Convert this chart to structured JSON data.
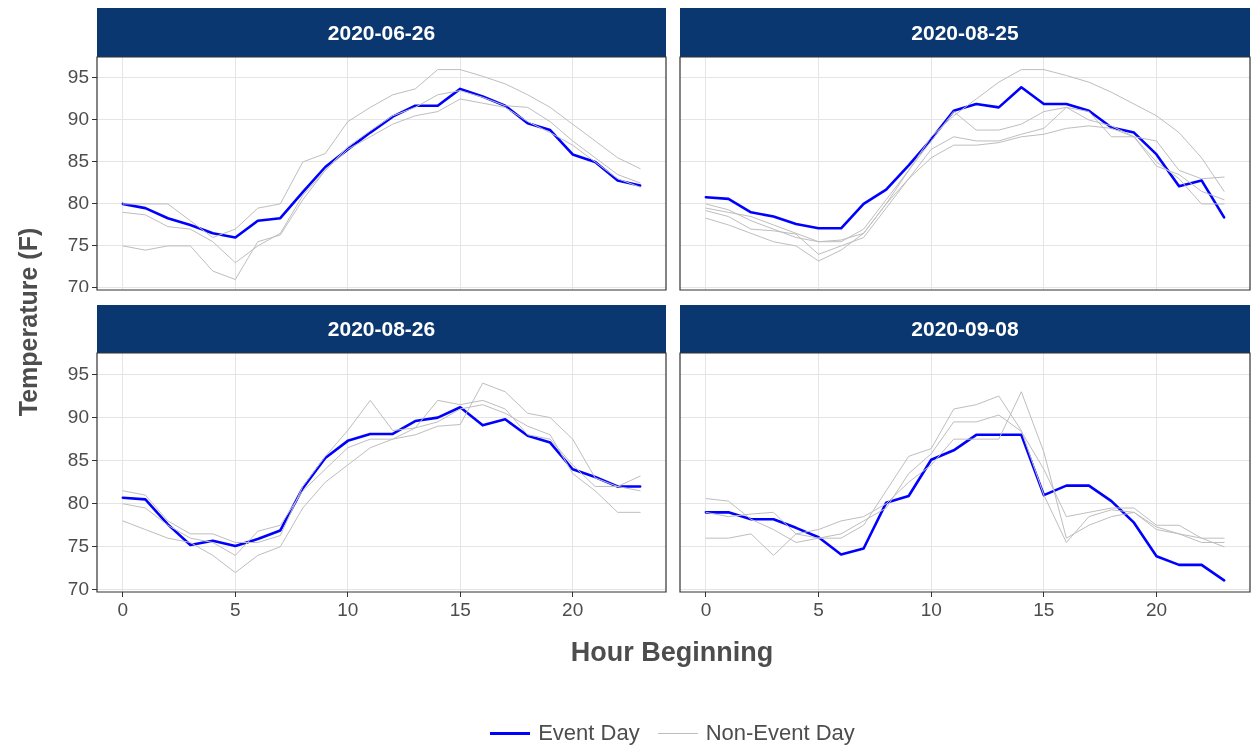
{
  "chart_data": [
    {
      "type": "line",
      "title": "2020-06-26",
      "ylabel": "Temperature (F)",
      "legend": "bottom",
      "grid": true,
      "tick_labels": "y",
      "x": [
        0,
        1,
        2,
        3,
        4,
        5,
        6,
        7,
        8,
        9,
        10,
        11,
        12,
        13,
        14,
        15,
        16,
        17,
        18,
        19,
        20,
        21,
        22,
        23
      ],
      "xlim": [
        -1.15,
        24.15
      ],
      "xticks": [
        0,
        5,
        10,
        15,
        20
      ],
      "ylim": [
        69.75,
        97.5
      ],
      "yticks": [
        70,
        75,
        80,
        85,
        90,
        95
      ],
      "series": [
        {
          "name": "Non-Event Day",
          "color": "#bebebe",
          "values": [
            80,
            80,
            80,
            78,
            76,
            77,
            79.5,
            80,
            85,
            86,
            89.8,
            91.5,
            93,
            93.7,
            96,
            96,
            95.2,
            94.3,
            93,
            91.5,
            89.5,
            87.5,
            85.5,
            84.2
          ]
        },
        {
          "color": "#bebebe",
          "values": [
            79,
            78.7,
            77.3,
            77,
            75.5,
            73,
            75,
            76.5,
            81,
            84,
            86.8,
            88.7,
            90.5,
            91.5,
            93,
            93.5,
            92.7,
            91.7,
            91.5,
            89.8,
            87.5,
            85.5,
            83.5,
            82.5
          ]
        },
        {
          "color": "#bebebe",
          "values": [
            75,
            74.5,
            75,
            75,
            72,
            71,
            75.5,
            76.3,
            80.5,
            84,
            86.5,
            88,
            89.5,
            90.5,
            91,
            92.5,
            92,
            91.5,
            89.8,
            88.5,
            87,
            85,
            83,
            82
          ]
        },
        {
          "name": "Event Day",
          "color": "#0000ff",
          "values": [
            80,
            79.5,
            78.3,
            77.5,
            76.5,
            76,
            78,
            78.3,
            81.4,
            84.4,
            86.5,
            88.5,
            90.4,
            91.7,
            91.7,
            93.7,
            92.8,
            91.7,
            89.6,
            88.8,
            85.9,
            85,
            82.8,
            82.2
          ]
        }
      ]
    },
    {
      "type": "line",
      "title": "2020-08-25",
      "grid": true,
      "tick_labels": false,
      "x": [
        0,
        1,
        2,
        3,
        4,
        5,
        6,
        7,
        8,
        9,
        10,
        11,
        12,
        13,
        14,
        15,
        16,
        17,
        18,
        19,
        20,
        21,
        22,
        23
      ],
      "xlim": [
        -1.15,
        24.15
      ],
      "xticks": [
        0,
        5,
        10,
        15,
        20
      ],
      "ylim": [
        69.75,
        97.5
      ],
      "yticks": [
        70,
        75,
        80,
        85,
        90,
        95
      ],
      "series": [
        {
          "color": "#bebebe",
          "values": [
            79.5,
            79,
            78.5,
            77.5,
            76.5,
            75.5,
            75.5,
            77,
            80.5,
            84,
            88,
            90.5,
            92.5,
            94.5,
            96,
            96,
            95.3,
            94.5,
            93.3,
            91.9,
            90.5,
            88.5,
            85.5,
            81.5
          ]
        },
        {
          "color": "#bebebe",
          "values": [
            80,
            79.3,
            78,
            77,
            76,
            75.5,
            75.7,
            76.5,
            80,
            84,
            87.5,
            91,
            88.8,
            88.8,
            89.5,
            91,
            91.5,
            91,
            88,
            88,
            87.5,
            84,
            83,
            83.2
          ]
        },
        {
          "color": "#bebebe",
          "values": [
            79.2,
            78.5,
            77,
            76.8,
            76.4,
            74,
            75,
            76,
            79.5,
            83,
            86.5,
            88,
            87.5,
            87.5,
            88.3,
            89,
            91.5,
            90,
            89.3,
            88,
            84.5,
            83.5,
            81.5,
            80.5
          ]
        },
        {
          "color": "#bebebe",
          "values": [
            78.3,
            77.5,
            76.5,
            75.5,
            75,
            73.2,
            74.5,
            76.5,
            80,
            83,
            85.5,
            87,
            87,
            87.3,
            88,
            88.3,
            89,
            89.3,
            89,
            88,
            85,
            83,
            80,
            80
          ]
        },
        {
          "color": "#0000ff",
          "values": [
            80.8,
            80.6,
            79,
            78.5,
            77.6,
            77.1,
            77.1,
            80,
            81.7,
            84.6,
            87.7,
            91.1,
            91.9,
            91.5,
            93.9,
            91.9,
            91.9,
            91.1,
            89.1,
            88.5,
            85.9,
            82.1,
            82.8,
            78.4
          ]
        }
      ]
    },
    {
      "type": "line",
      "title": "2020-08-26",
      "xlabel": "Hour Beginning",
      "grid": true,
      "x": [
        0,
        1,
        2,
        3,
        4,
        5,
        6,
        7,
        8,
        9,
        10,
        11,
        12,
        13,
        14,
        15,
        16,
        17,
        18,
        19,
        20,
        21,
        22,
        23
      ],
      "xlim": [
        -1.15,
        24.15
      ],
      "xticks": [
        0,
        5,
        10,
        15,
        20
      ],
      "ylim": [
        69.75,
        97.5
      ],
      "yticks": [
        70,
        75,
        80,
        85,
        90,
        95
      ],
      "series": [
        {
          "color": "#bebebe",
          "values": [
            81.5,
            81,
            78,
            76.5,
            76.5,
            75.5,
            75.5,
            76.3,
            82,
            85.5,
            88.5,
            92,
            88.5,
            88.8,
            92,
            91.5,
            92,
            91,
            88,
            87.5,
            84.5,
            82,
            82,
            83.2
          ]
        },
        {
          "color": "#bebebe",
          "values": [
            80,
            79.5,
            77.5,
            76,
            75.5,
            74,
            76.8,
            77.5,
            81.5,
            84,
            86.5,
            87.5,
            87.5,
            88,
            89,
            89.2,
            94,
            93,
            90.5,
            90,
            87.5,
            83,
            82,
            81.5
          ]
        },
        {
          "color": "#bebebe",
          "values": [
            78,
            77,
            76,
            75.5,
            74,
            72,
            74,
            75,
            79.5,
            82.5,
            84.5,
            86.5,
            87.5,
            88.8,
            89.5,
            91,
            91.5,
            90.5,
            89,
            88,
            83.5,
            81.5,
            79,
            79
          ]
        },
        {
          "color": "#0000ff",
          "values": [
            80.7,
            80.5,
            77.6,
            75.2,
            75.7,
            75.1,
            75.9,
            76.9,
            81.8,
            85.3,
            87.3,
            88.1,
            88.1,
            89.6,
            90,
            91.2,
            89.1,
            89.8,
            87.9,
            87.1,
            84,
            83.1,
            82,
            82
          ]
        }
      ]
    },
    {
      "type": "line",
      "title": "2020-09-08",
      "grid": true,
      "tick_labels": "x",
      "x": [
        0,
        1,
        2,
        3,
        4,
        5,
        6,
        7,
        8,
        9,
        10,
        11,
        12,
        13,
        14,
        15,
        16,
        17,
        18,
        19,
        20,
        21,
        22,
        23
      ],
      "xlim": [
        -1.15,
        24.15
      ],
      "xticks": [
        0,
        5,
        10,
        15,
        20
      ],
      "ylim": [
        69.75,
        97.5
      ],
      "yticks": [
        70,
        75,
        80,
        85,
        90,
        95
      ],
      "series": [
        {
          "color": "#bebebe",
          "values": [
            80.6,
            80.3,
            78.2,
            77,
            75.5,
            76,
            76,
            77.5,
            81.5,
            85.5,
            86.4,
            91,
            91.5,
            92.5,
            88.5,
            81,
            75.5,
            78.5,
            79.3,
            79,
            77.3,
            76.5,
            76,
            76
          ]
        },
        {
          "color": "#bebebe",
          "values": [
            79,
            78.5,
            78.8,
            79,
            76.5,
            76,
            76.5,
            78,
            79.5,
            83.5,
            85.8,
            89.5,
            89.5,
            90.3,
            88.4,
            84,
            78.5,
            79,
            79.5,
            79.5,
            77.5,
            77.5,
            76,
            75
          ]
        },
        {
          "color": "#bebebe",
          "values": [
            76,
            76,
            76.5,
            74,
            76.5,
            77,
            78,
            78.5,
            80,
            82.5,
            84.5,
            87.5,
            87.5,
            87.5,
            93,
            86,
            76,
            77.5,
            78.5,
            79,
            77,
            76.5,
            75.5,
            75.5
          ]
        },
        {
          "color": "#0000ff",
          "values": [
            79,
            79,
            78.2,
            78.2,
            77.2,
            76.1,
            74.1,
            74.8,
            80.1,
            80.9,
            85.1,
            86.2,
            88,
            88,
            88,
            81,
            82.1,
            82.1,
            80.3,
            77.8,
            73.9,
            72.9,
            72.9,
            71.1
          ]
        }
      ]
    }
  ]
}
